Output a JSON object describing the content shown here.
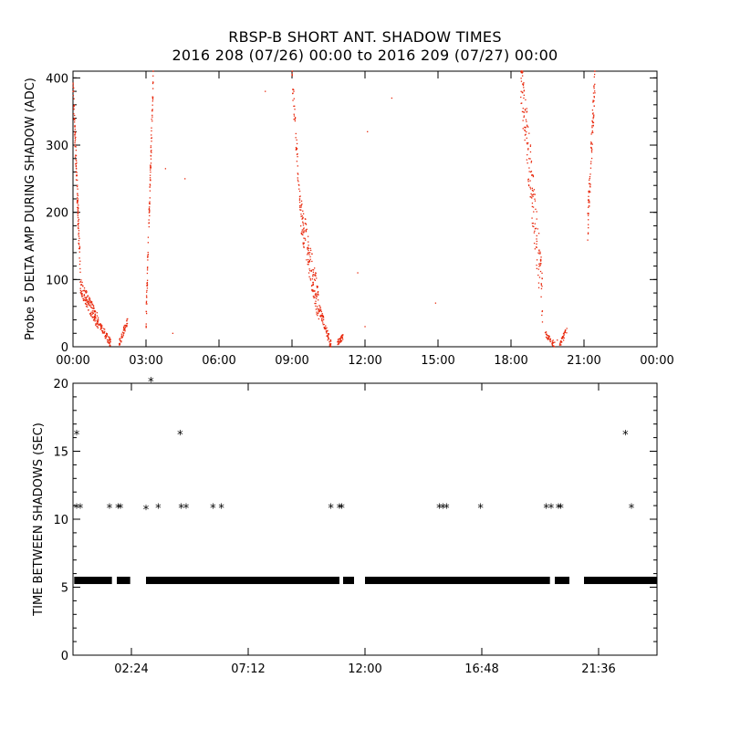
{
  "title": "RBSP-B SHORT ANT. SHADOW TIMES",
  "subtitle": "2016 208 (07/26) 00:00 to 2016 209 (07/27) 00:00",
  "colors": {
    "amp_points": "#e8280c",
    "shadow_points": "#000000",
    "axes": "#000000"
  },
  "chart_data": [
    {
      "type": "scatter",
      "ylabel": "Probe 5 DELTA AMP DURING SHADOW (ADC)",
      "xlabel": "",
      "x_units": "hours since 2016-07-26 00:00",
      "xlim": [
        0,
        24
      ],
      "ylim": [
        0,
        410
      ],
      "xticks": [
        0,
        3,
        6,
        9,
        12,
        15,
        18,
        21,
        24
      ],
      "xtick_labels": [
        "00:00",
        "03:00",
        "06:00",
        "09:00",
        "12:00",
        "15:00",
        "18:00",
        "21:00",
        "00:00"
      ],
      "yticks": [
        0,
        100,
        200,
        300,
        400
      ],
      "ytick_labels": [
        "0",
        "100",
        "200",
        "300",
        "400"
      ],
      "series": [
        {
          "marker": "dot",
          "color": "#e8280c",
          "segments": [
            {
              "x0": 0.0,
              "x1": 0.3,
              "y0": 390,
              "y1": 110,
              "n": 120,
              "spread": 22
            },
            {
              "x0": 0.3,
              "x1": 1.05,
              "y0": 90,
              "y1": 35,
              "n": 140,
              "spread": 12
            },
            {
              "x0": 1.05,
              "x1": 1.55,
              "y0": 35,
              "y1": 5,
              "n": 70,
              "spread": 6
            },
            {
              "x0": 1.9,
              "x1": 2.25,
              "y0": 5,
              "y1": 40,
              "n": 45,
              "spread": 6
            },
            {
              "x0": 3.0,
              "x1": 3.3,
              "y0": 40,
              "y1": 405,
              "n": 110,
              "spread": 18
            },
            {
              "x0": 9.0,
              "x1": 9.35,
              "y0": 405,
              "y1": 200,
              "n": 55,
              "spread": 20
            },
            {
              "x0": 9.35,
              "x1": 10.1,
              "y0": 200,
              "y1": 60,
              "n": 160,
              "spread": 28
            },
            {
              "x0": 10.1,
              "x1": 10.6,
              "y0": 60,
              "y1": 3,
              "n": 80,
              "spread": 8
            },
            {
              "x0": 10.85,
              "x1": 11.1,
              "y0": 5,
              "y1": 15,
              "n": 35,
              "spread": 4
            },
            {
              "x0": 18.4,
              "x1": 19.3,
              "y0": 405,
              "y1": 70,
              "n": 170,
              "spread": 45
            },
            {
              "x0": 19.4,
              "x1": 19.8,
              "y0": 20,
              "y1": 3,
              "n": 40,
              "spread": 5
            },
            {
              "x0": 20.0,
              "x1": 20.3,
              "y0": 3,
              "y1": 25,
              "n": 35,
              "spread": 5
            },
            {
              "x0": 21.15,
              "x1": 21.45,
              "y0": 180,
              "y1": 400,
              "n": 90,
              "spread": 25
            }
          ],
          "points": [
            [
              7.9,
              380
            ],
            [
              4.6,
              250
            ],
            [
              13.1,
              370
            ],
            [
              12.1,
              320
            ],
            [
              11.7,
              110
            ],
            [
              3.8,
              265
            ],
            [
              4.1,
              20
            ],
            [
              14.9,
              65
            ],
            [
              12.0,
              30
            ],
            [
              19.9,
              10
            ]
          ]
        }
      ]
    },
    {
      "type": "scatter",
      "ylabel": "TIME BETWEEN SHADOWS (SEC)",
      "xlabel": "",
      "x_units": "hours since 2016-07-26 00:00",
      "xlim": [
        0,
        24
      ],
      "ylim": [
        0,
        20
      ],
      "xticks": [
        2.4,
        7.2,
        12.0,
        16.8,
        21.6
      ],
      "xtick_labels": [
        "02:24",
        "07:12",
        "12:00",
        "16:48",
        "21:36"
      ],
      "yticks": [
        0,
        5,
        10,
        15,
        20
      ],
      "ytick_labels": [
        "0",
        "5",
        "10",
        "15",
        "20"
      ],
      "series": [
        {
          "marker": "asterisk",
          "color": "#000000",
          "baseline_value": 5.5,
          "baseline_ranges": [
            [
              0.05,
              1.6
            ],
            [
              1.8,
              2.35
            ],
            [
              3.0,
              10.95
            ],
            [
              11.1,
              11.55
            ],
            [
              12.0,
              19.6
            ],
            [
              19.8,
              20.4
            ],
            [
              21.0,
              24.0
            ]
          ],
          "points": [
            [
              0.15,
              16.3
            ],
            [
              0.15,
              10.9
            ],
            [
              0.3,
              10.9
            ],
            [
              1.5,
              10.9
            ],
            [
              1.85,
              10.9
            ],
            [
              1.95,
              10.9
            ],
            [
              3.0,
              10.8
            ],
            [
              3.2,
              20.2
            ],
            [
              3.5,
              10.9
            ],
            [
              4.4,
              16.3
            ],
            [
              4.45,
              10.9
            ],
            [
              4.65,
              10.9
            ],
            [
              5.75,
              10.9
            ],
            [
              6.1,
              10.9
            ],
            [
              10.6,
              10.9
            ],
            [
              10.95,
              10.9
            ],
            [
              11.05,
              10.9
            ],
            [
              15.05,
              10.9
            ],
            [
              15.2,
              10.9
            ],
            [
              15.35,
              10.9
            ],
            [
              16.75,
              10.9
            ],
            [
              19.45,
              10.9
            ],
            [
              19.65,
              10.9
            ],
            [
              19.95,
              10.9
            ],
            [
              20.05,
              10.9
            ],
            [
              22.7,
              16.3
            ],
            [
              22.95,
              10.9
            ]
          ]
        }
      ]
    }
  ]
}
